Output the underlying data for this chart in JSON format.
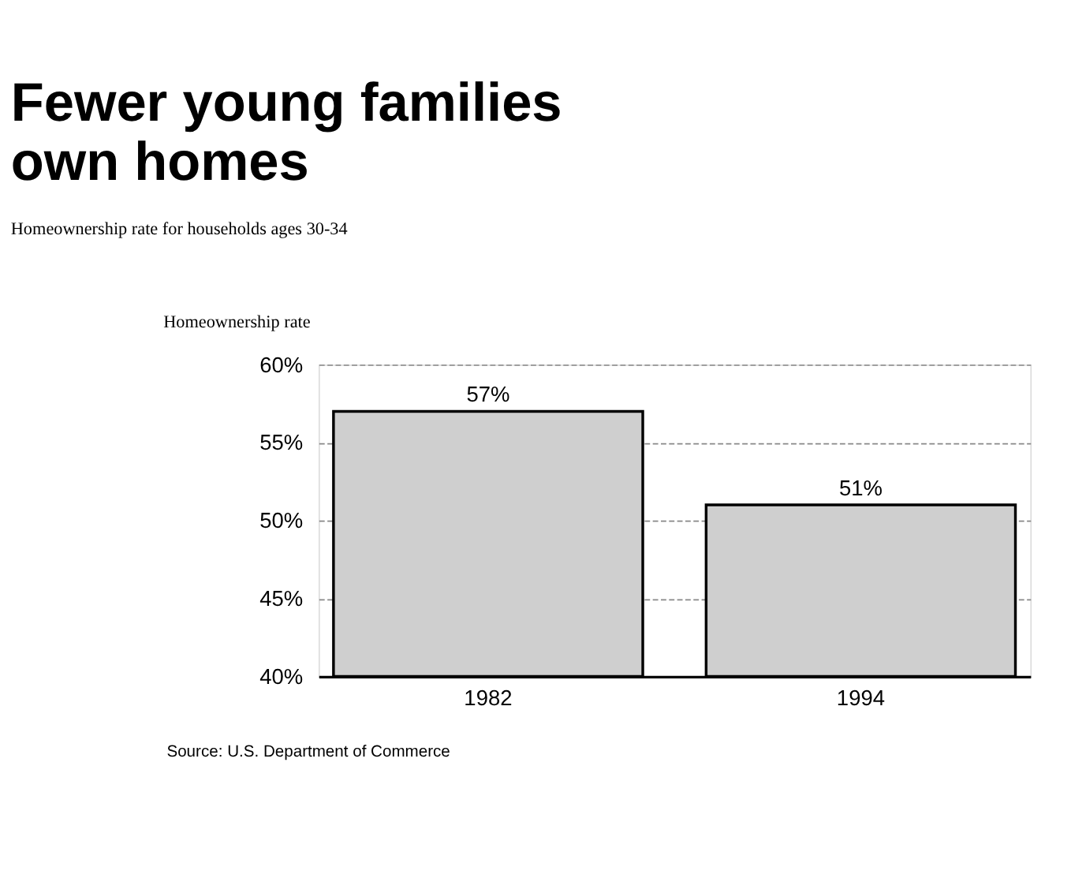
{
  "chart_data": {
    "type": "bar",
    "title": [
      "Fewer young families",
      "own homes"
    ],
    "subtitle": "Homeownership rate for households ages 30-34",
    "ylabel": "Homeownership rate",
    "categories": [
      "1982",
      "1994"
    ],
    "values": [
      57,
      51
    ],
    "color": "#cfcfcf",
    "value_labels": [
      "57%",
      "51%"
    ],
    "ylim": [
      40,
      60
    ],
    "yticks": [
      {
        "value": 40,
        "label": "40%"
      },
      {
        "value": 45,
        "label": "45%"
      },
      {
        "value": 50,
        "label": "50%"
      },
      {
        "value": 55,
        "label": "55%"
      },
      {
        "value": 60,
        "label": "60%"
      }
    ],
    "grid": "y",
    "annotations": [
      "Source: U.S. Department of Commerce"
    ]
  }
}
